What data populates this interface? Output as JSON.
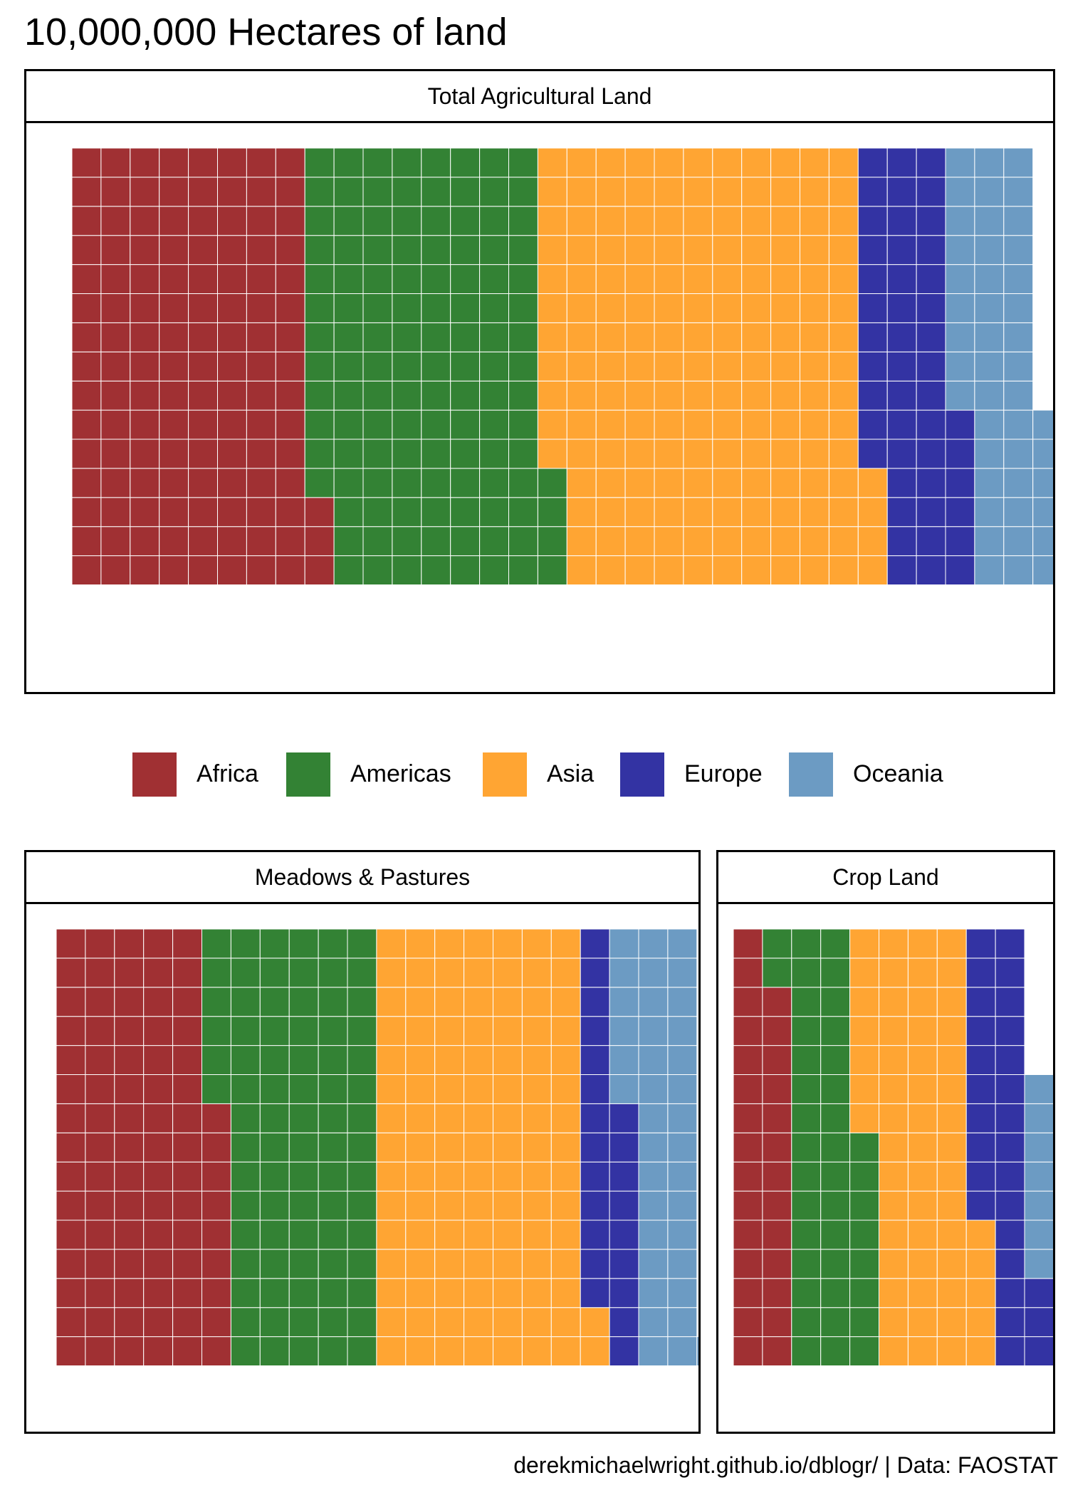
{
  "title": "10,000,000 Hectares of land",
  "caption": "derekmichaelwright.github.io/dblogr/ | Data: FAOSTAT",
  "colors": {
    "Africa": "#A03033",
    "Americas": "#338234",
    "Asia": "#FFA533",
    "Europe": "#3333A3",
    "Oceania": "#6C9BC3"
  },
  "legend": [
    "Africa",
    "Americas",
    "Asia",
    "Europe",
    "Oceania"
  ],
  "chart_data": [
    {
      "type": "waffle",
      "title": "Total Agricultural Land",
      "rows": 15,
      "series": [
        {
          "name": "Africa",
          "value": 123
        },
        {
          "name": "Americas",
          "value": 121
        },
        {
          "name": "Asia",
          "value": 165
        },
        {
          "name": "Europe",
          "value": 47
        },
        {
          "name": "Oceania",
          "value": 45
        }
      ]
    },
    {
      "type": "waffle",
      "title": "Meadows & Pastures",
      "rows": 15,
      "series": [
        {
          "name": "Africa",
          "value": 84
        },
        {
          "name": "Americas",
          "value": 81
        },
        {
          "name": "Asia",
          "value": 107
        },
        {
          "name": "Europe",
          "value": 22
        },
        {
          "name": "Oceania",
          "value": 37
        }
      ]
    },
    {
      "type": "waffle",
      "title": "Crop Land",
      "rows": 15,
      "series": [
        {
          "name": "Africa",
          "value": 28
        },
        {
          "name": "Americas",
          "value": 40
        },
        {
          "name": "Asia",
          "value": 57
        },
        {
          "name": "Europe",
          "value": 28
        },
        {
          "name": "Oceania",
          "value": 7
        }
      ]
    }
  ]
}
